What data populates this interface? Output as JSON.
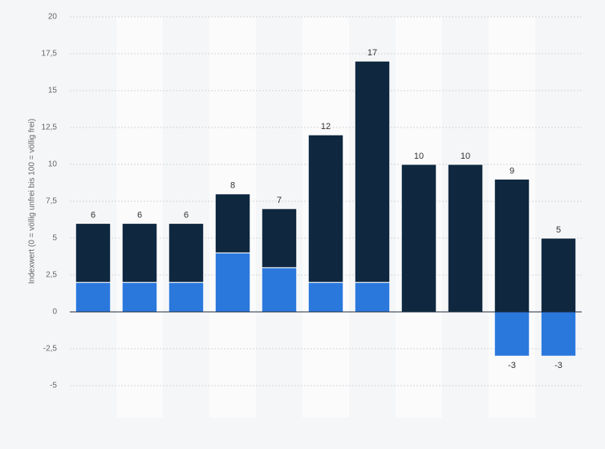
{
  "chart_data": {
    "type": "stacked-bar",
    "y_label": "Indexwert (0 = völlig unfrei bis 100 = völlig frei)",
    "categories": [
      null,
      null,
      null,
      null,
      null,
      null,
      null,
      null,
      null,
      null,
      null
    ],
    "series": [
      {
        "color": "#2b78dd",
        "values": [
          2,
          2,
          2,
          4,
          3,
          2,
          2,
          0,
          0,
          -3,
          -3
        ]
      },
      {
        "color": "#0f2840",
        "values": [
          4,
          4,
          4,
          4,
          4,
          10,
          15,
          10,
          10,
          9,
          5
        ]
      }
    ],
    "totals": [
      6,
      6,
      6,
      8,
      7,
      12,
      17,
      10,
      10,
      9,
      5
    ],
    "ylim": [
      -5,
      20
    ],
    "yticks": [
      -5,
      {
        "value": -2.5,
        "label": "-2,5"
      },
      0,
      {
        "value": 2.5,
        "label": "2,5"
      },
      5,
      {
        "value": 7.5,
        "label": "7,5"
      },
      10,
      {
        "value": 12.5,
        "label": "12,5"
      },
      15,
      {
        "value": 17.5,
        "label": "17,5"
      },
      20
    ],
    "grid": true
  }
}
